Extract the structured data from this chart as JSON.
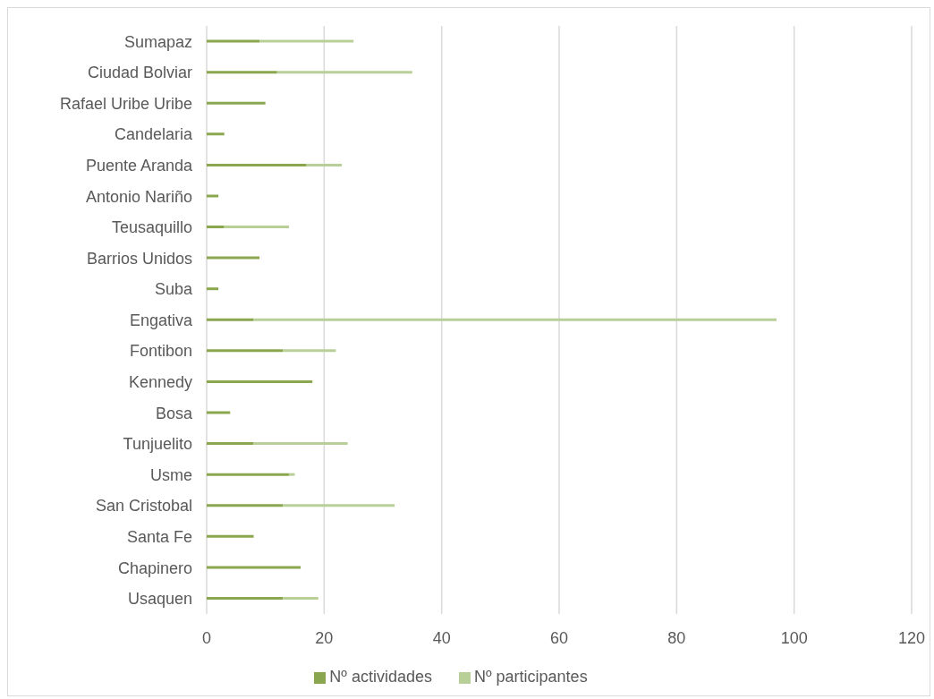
{
  "chart_data": {
    "type": "bar",
    "orientation": "horizontal",
    "stacked": true,
    "categories": [
      "Sumapaz",
      "Ciudad Bolviar",
      "Rafael Uribe Uribe",
      "Candelaria",
      "Puente Aranda",
      "Antonio Nariño",
      "Teusaquillo",
      "Barrios Unidos",
      "Suba",
      "Engativa",
      "Fontibon",
      "Kennedy",
      "Bosa",
      "Tunjuelito",
      "Usme",
      "San Cristobal",
      "Santa Fe",
      "Chapinero",
      "Usaquen"
    ],
    "series": [
      {
        "name": "Nº actividades",
        "color": "#8aa64e",
        "values": [
          9,
          12,
          10,
          3,
          17,
          2,
          3,
          9,
          2,
          8,
          13,
          18,
          4,
          8,
          14,
          13,
          8,
          16,
          13
        ]
      },
      {
        "name": "Nº participantes",
        "color": "#b9cf98",
        "values": [
          16,
          23,
          0,
          0,
          6,
          0,
          11,
          0,
          0,
          89,
          9,
          0,
          0,
          16,
          1,
          19,
          0,
          0,
          6
        ]
      }
    ],
    "xlim": [
      0,
      120
    ],
    "xticks": [
      0,
      20,
      40,
      60,
      80,
      100,
      120
    ],
    "grid": "x",
    "legend": "bottom"
  }
}
